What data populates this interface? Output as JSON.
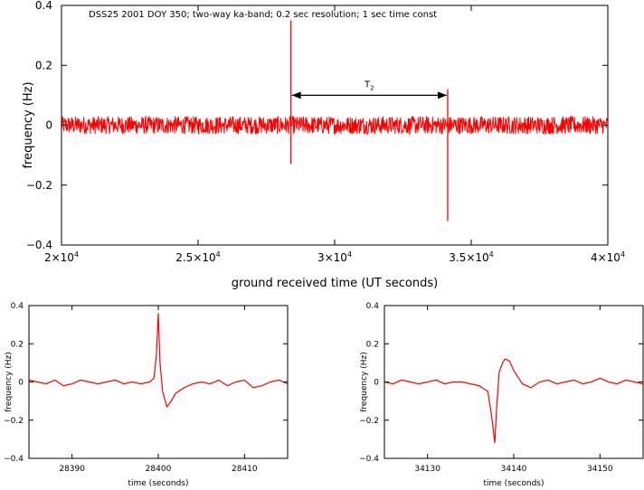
{
  "chart_data": [
    {
      "id": "top",
      "type": "line",
      "title": "",
      "annotation": "DSS25  2001  DOY 350;  two-way ka-band;  0.2 sec resolution;  1 sec time const",
      "xlabel": "ground received time (UT seconds)",
      "ylabel": "frequency (Hz)",
      "xlim": [
        20000,
        40000
      ],
      "ylim": [
        -0.4,
        0.4
      ],
      "x_ticks": [
        {
          "v": 20000,
          "m": "2×10",
          "e": "4"
        },
        {
          "v": 25000,
          "m": "2.5×10",
          "e": "4"
        },
        {
          "v": 30000,
          "m": "3×10",
          "e": "4"
        },
        {
          "v": 35000,
          "m": "3.5×10",
          "e": "4"
        },
        {
          "v": 40000,
          "m": "4×10",
          "e": "4"
        }
      ],
      "y_ticks": [
        {
          "v": 0.4,
          "label": "0.4"
        },
        {
          "v": 0.2,
          "label": "0.2"
        },
        {
          "v": 0,
          "label": "0"
        },
        {
          "v": -0.2,
          "label": "−0.2"
        },
        {
          "v": -0.4,
          "label": "−0.4"
        }
      ],
      "series": [
        {
          "noise_band": [
            -0.03,
            0.03
          ],
          "events": [
            {
              "x": 28400,
              "ymin": -0.13,
              "ymax": 0.35
            },
            {
              "x": 34138,
              "ymin": -0.32,
              "ymax": 0.12
            }
          ]
        }
      ],
      "span_marker": {
        "label": "T",
        "subscript": "2",
        "x1": 28400,
        "x2": 34138,
        "y": 0.1
      },
      "color": "#ff0000"
    },
    {
      "id": "bottom-left",
      "type": "line",
      "title": "",
      "xlabel": "time (seconds)",
      "ylabel": "frequency (Hz)",
      "xlim": [
        28385,
        28415
      ],
      "ylim": [
        -0.4,
        0.4
      ],
      "x_ticks": [
        {
          "v": 28390,
          "label": "28390"
        },
        {
          "v": 28400,
          "label": "28400"
        },
        {
          "v": 28410,
          "label": "28410"
        }
      ],
      "y_ticks": [
        {
          "v": 0.4,
          "label": "0.4"
        },
        {
          "v": 0.2,
          "label": "0.2"
        },
        {
          "v": 0,
          "label": "0"
        },
        {
          "v": -0.2,
          "label": "−0.2"
        },
        {
          "v": -0.4,
          "label": "−0.4"
        }
      ],
      "series": [
        {
          "x": [
            28385,
            28386,
            28387,
            28388,
            28389,
            28390,
            28391,
            28392,
            28393,
            28394,
            28395,
            28396,
            28397,
            28398,
            28399,
            28399.5,
            28399.8,
            28400,
            28400.2,
            28400.5,
            28401,
            28401.5,
            28402,
            28403,
            28404,
            28405,
            28406,
            28407,
            28408,
            28409,
            28410,
            28411,
            28412,
            28413,
            28414,
            28415
          ],
          "y": [
            0.01,
            0.0,
            -0.01,
            0.01,
            -0.02,
            -0.01,
            0.01,
            0.0,
            -0.01,
            0.0,
            0.01,
            -0.01,
            0.0,
            -0.01,
            0.0,
            0.02,
            0.15,
            0.36,
            0.1,
            -0.05,
            -0.13,
            -0.1,
            -0.06,
            -0.03,
            -0.01,
            0.0,
            -0.01,
            0.01,
            -0.02,
            0.0,
            0.01,
            -0.03,
            -0.02,
            0.0,
            0.01,
            -0.01
          ]
        }
      ],
      "color": "#ff0000"
    },
    {
      "id": "bottom-right",
      "type": "line",
      "title": "",
      "xlabel": "time (seconds)",
      "ylabel": "frequency (Hz)",
      "xlim": [
        34125,
        34155
      ],
      "ylim": [
        -0.4,
        0.4
      ],
      "x_ticks": [
        {
          "v": 34130,
          "label": "34130"
        },
        {
          "v": 34140,
          "label": "34140"
        },
        {
          "v": 34150,
          "label": "34150"
        }
      ],
      "y_ticks": [
        {
          "v": 0.4,
          "label": "0.4"
        },
        {
          "v": 0.2,
          "label": "0.2"
        },
        {
          "v": 0,
          "label": "0"
        },
        {
          "v": -0.2,
          "label": "−0.2"
        },
        {
          "v": -0.4,
          "label": "−0.4"
        }
      ],
      "series": [
        {
          "x": [
            34125,
            34126,
            34127,
            34128,
            34129,
            34130,
            34131,
            34132,
            34133,
            34134,
            34135,
            34136,
            34137,
            34137.5,
            34137.8,
            34138,
            34138.3,
            34138.7,
            34139,
            34139.5,
            34140,
            34141,
            34142,
            34143,
            34144,
            34145,
            34146,
            34147,
            34148,
            34149,
            34150,
            34151,
            34152,
            34153,
            34154,
            34155
          ],
          "y": [
            0.0,
            -0.01,
            0.01,
            0.0,
            -0.01,
            0.0,
            0.01,
            -0.01,
            0.0,
            0.0,
            -0.01,
            -0.02,
            -0.05,
            -0.2,
            -0.32,
            -0.15,
            0.05,
            0.1,
            0.12,
            0.11,
            0.06,
            -0.01,
            -0.03,
            0.0,
            0.01,
            -0.01,
            0.0,
            0.01,
            -0.01,
            0.0,
            0.02,
            0.0,
            -0.01,
            0.01,
            0.0,
            -0.01
          ]
        }
      ],
      "color": "#ff0000"
    }
  ]
}
